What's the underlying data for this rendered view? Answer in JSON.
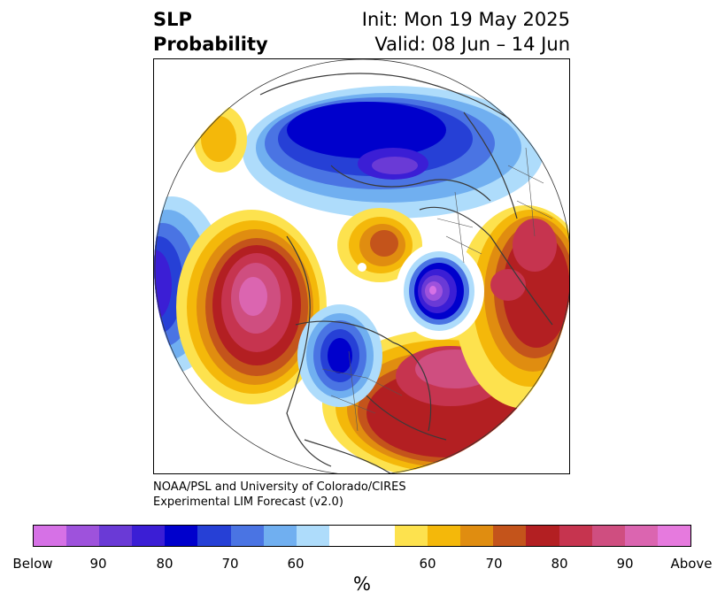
{
  "header": {
    "variable": "SLP",
    "variable2": "Probability",
    "init": "Init: Mon 19 May 2025",
    "valid": "Valid: 08 Jun – 14 Jun"
  },
  "credit": {
    "line1": "NOAA/PSL and University of Colorado/CIRES",
    "line2": "Experimental LIM Forecast (v2.0)"
  },
  "colorbar": {
    "unit": "%",
    "colors": [
      "#d671e6",
      "#9e52dc",
      "#6a3ad6",
      "#3b1ed5",
      "#0000cc",
      "#2640d6",
      "#4a74e3",
      "#70aff0",
      "#aedcfb",
      "#ffffff",
      "#ffffff",
      "#fde24e",
      "#f4b80a",
      "#e08d10",
      "#c4541b",
      "#b31f22",
      "#c6344f",
      "#cf4e80",
      "#db65b0",
      "#e67ade"
    ],
    "labels": [
      "Below",
      "90",
      "80",
      "70",
      "60",
      "60",
      "70",
      "80",
      "90",
      "Above"
    ]
  },
  "legend": {
    "below_color": "#0000cc",
    "above_color": "#b31f22",
    "neutral": "#ffffff"
  }
}
